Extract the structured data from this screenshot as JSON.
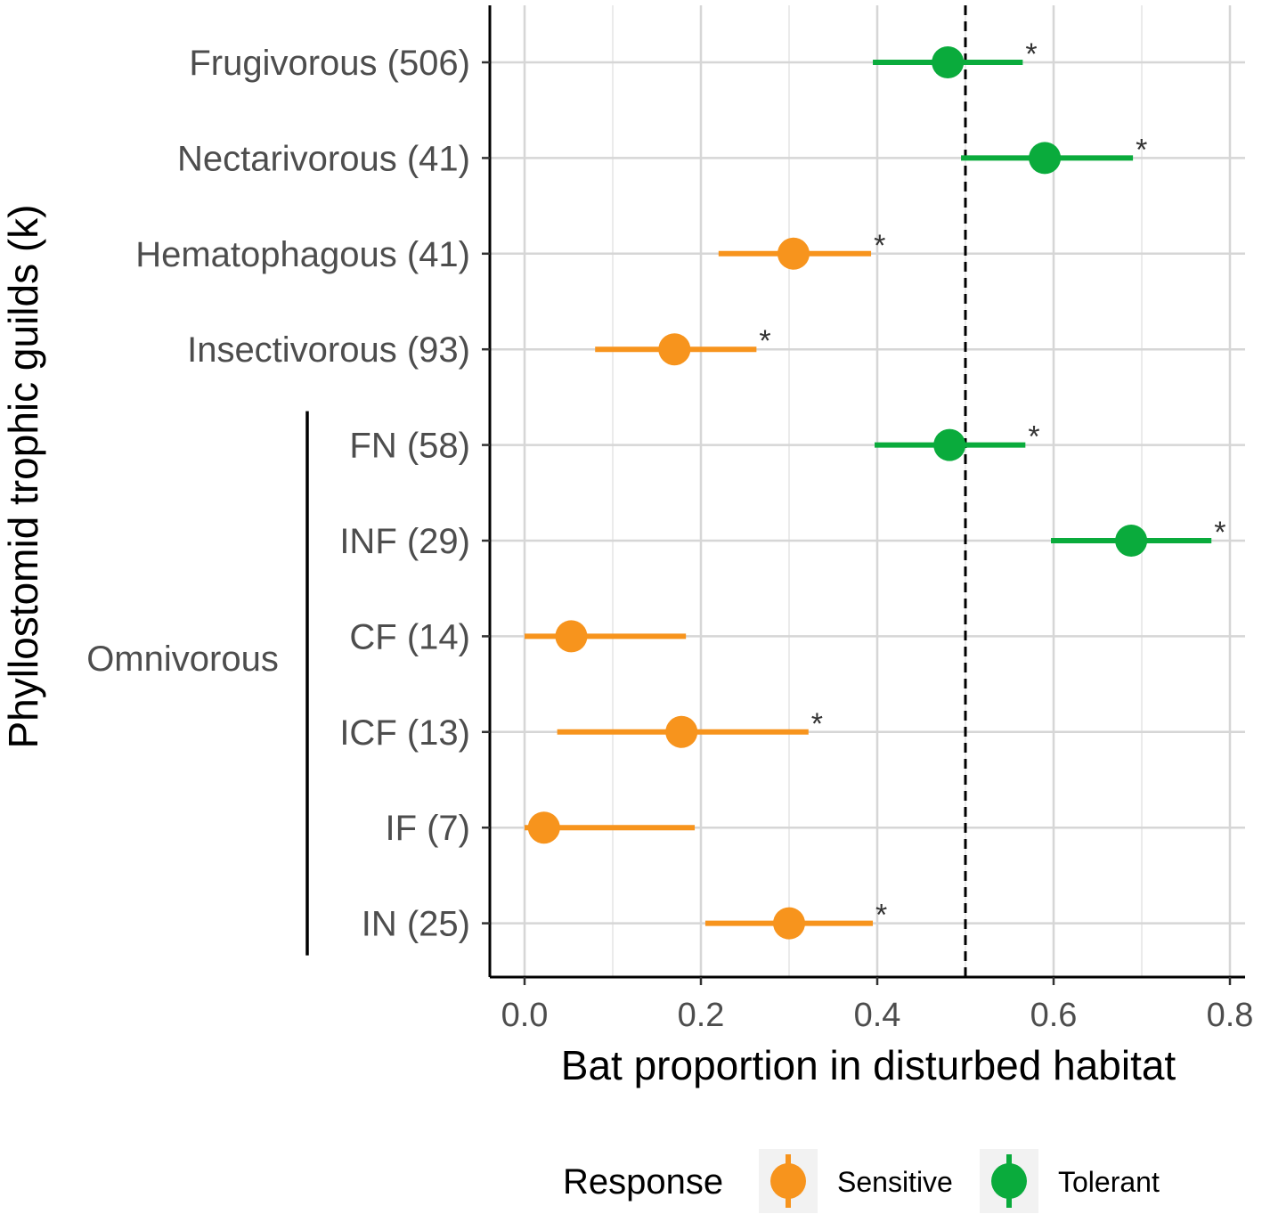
{
  "chart_data": {
    "type": "scatter",
    "xlabel": "Bat proportion in disturbed habitat",
    "ylabel": "Phyllostomid trophic guilds (k)",
    "xlim": [
      -0.02,
      0.82
    ],
    "xticks": [
      0.0,
      0.2,
      0.4,
      0.6,
      0.8
    ],
    "xtick_labels": [
      "0.0",
      "0.2",
      "0.4",
      "0.6",
      "0.8"
    ],
    "reference_line": 0.5,
    "grid": true,
    "group_label": "Omnivorous",
    "legend": {
      "title": "Response",
      "placement": "bottom",
      "items": [
        {
          "name": "Sensitive",
          "color": "#f7941d"
        },
        {
          "name": "Tolerant",
          "color": "#0aab3c"
        }
      ]
    },
    "categories": [
      {
        "label": "Frugivorous (506)",
        "value": 0.48,
        "lo": 0.395,
        "hi": 0.565,
        "response": "Tolerant",
        "signif": "*"
      },
      {
        "label": "Nectarivorous (41)",
        "value": 0.59,
        "lo": 0.495,
        "hi": 0.69,
        "response": "Tolerant",
        "signif": "*"
      },
      {
        "label": "Hematophagous (41)",
        "value": 0.305,
        "lo": 0.22,
        "hi": 0.393,
        "response": "Sensitive",
        "signif": "*"
      },
      {
        "label": "Insectivorous (93)",
        "value": 0.17,
        "lo": 0.08,
        "hi": 0.263,
        "response": "Sensitive",
        "signif": "*"
      },
      {
        "label": "FN (58)",
        "value": 0.482,
        "lo": 0.397,
        "hi": 0.568,
        "response": "Tolerant",
        "signif": "*"
      },
      {
        "label": "INF (29)",
        "value": 0.688,
        "lo": 0.597,
        "hi": 0.779,
        "response": "Tolerant",
        "signif": "*"
      },
      {
        "label": "CF (14)",
        "value": 0.053,
        "lo": 0.0,
        "hi": 0.183,
        "response": "Sensitive",
        "signif": ""
      },
      {
        "label": "ICF (13)",
        "value": 0.178,
        "lo": 0.037,
        "hi": 0.322,
        "response": "Sensitive",
        "signif": "*"
      },
      {
        "label": "IF (7)",
        "value": 0.022,
        "lo": 0.0,
        "hi": 0.193,
        "response": "Sensitive",
        "signif": ""
      },
      {
        "label": "IN (25)",
        "value": 0.3,
        "lo": 0.205,
        "hi": 0.395,
        "response": "Sensitive",
        "signif": "*"
      }
    ],
    "omnivorous_members": [
      "FN (58)",
      "INF (29)",
      "CF (14)",
      "ICF (13)",
      "IF (7)",
      "IN (25)"
    ]
  }
}
